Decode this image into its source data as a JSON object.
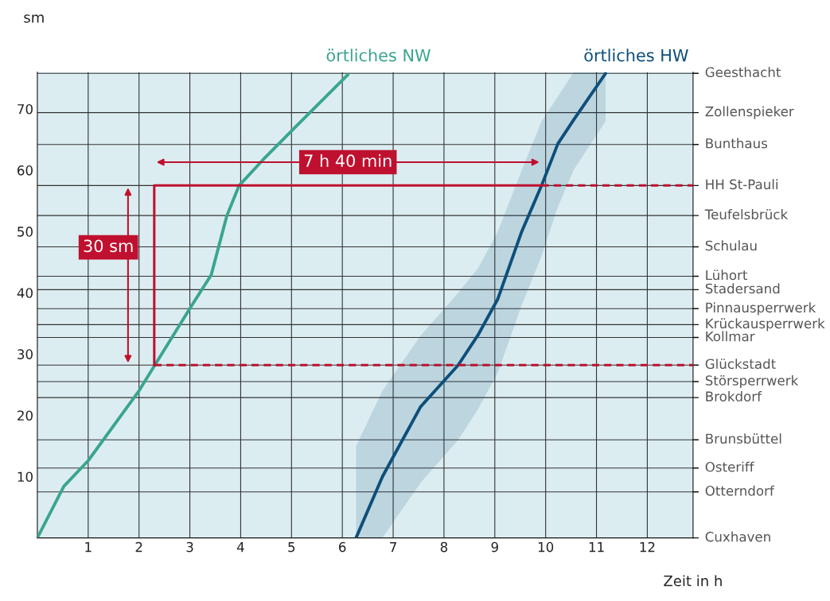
{
  "chart_data": {
    "type": "line",
    "xlabel": "Zeit in h",
    "ylabel": "sm",
    "xlim": [
      0,
      12.9
    ],
    "ylim": [
      0,
      76
    ],
    "xticks": [
      1,
      2,
      3,
      4,
      5,
      6,
      7,
      8,
      9,
      10,
      11,
      12
    ],
    "yticks": [
      10,
      20,
      30,
      40,
      50,
      60,
      70
    ],
    "ref_lines": [
      {
        "axis": "y",
        "value": 75.8,
        "label": "Geesthacht"
      },
      {
        "axis": "y",
        "value": 69.4,
        "label": "Zollenspieker"
      },
      {
        "axis": "y",
        "value": 64.2,
        "label": "Bunthaus"
      },
      {
        "axis": "y",
        "value": 57.5,
        "label": "HH St-Pauli"
      },
      {
        "axis": "y",
        "value": 52.6,
        "label": "Teufelsbrück"
      },
      {
        "axis": "y",
        "value": 47.5,
        "label": "Schulau"
      },
      {
        "axis": "y",
        "value": 42.7,
        "label": "Lühort"
      },
      {
        "axis": "y",
        "value": 40.5,
        "label": "Stadersand"
      },
      {
        "axis": "y",
        "value": 37.4,
        "label": "Pinnausperrwerk"
      },
      {
        "axis": "y",
        "value": 34.8,
        "label": "Krückausperrwerk"
      },
      {
        "axis": "y",
        "value": 32.7,
        "label": "Kollmar"
      },
      {
        "axis": "y",
        "value": 28.2,
        "label": "Glückstadt"
      },
      {
        "axis": "y",
        "value": 25.5,
        "label": "Störsperrwerk"
      },
      {
        "axis": "y",
        "value": 22.9,
        "label": "Brokdorf"
      },
      {
        "axis": "y",
        "value": 16.0,
        "label": "Brunsbüttel"
      },
      {
        "axis": "y",
        "value": 11.4,
        "label": "Osteriff"
      },
      {
        "axis": "y",
        "value": 7.5,
        "label": "Otterndorf"
      },
      {
        "axis": "y",
        "value": 0,
        "label": "Cuxhaven"
      }
    ],
    "grid": "x",
    "series": [
      {
        "name": "örtliches NW",
        "color": "#3aa58f",
        "x": [
          0,
          0.52,
          1.0,
          2.0,
          3.02,
          3.42,
          3.73,
          3.97,
          4.44,
          5.06,
          6.11
        ],
        "values": [
          0,
          8.4,
          12.6,
          24.0,
          37.7,
          42.9,
          52.6,
          57.5,
          61.7,
          66.9,
          75.6
        ]
      },
      {
        "name": "örtliches HW",
        "color": "#0d4f7a",
        "x": [
          6.27,
          6.79,
          7.54,
          8.28,
          8.67,
          9.06,
          9.53,
          9.92,
          10.24,
          10.55,
          11.18
        ],
        "values": [
          0,
          10,
          21.4,
          28.2,
          33.1,
          39,
          50,
          57.5,
          64.3,
          68.2,
          75.8
        ],
        "lower": [
          0,
          0,
          9,
          16,
          21,
          27,
          38,
          46,
          54,
          60,
          68
        ],
        "upper": [
          15,
          24,
          33,
          40,
          44,
          50,
          60,
          68,
          72,
          76,
          76
        ]
      },
      {
        "color": "#c0102f",
        "x": [
          2.3,
          2.3,
          9.92
        ],
        "values": [
          28.2,
          57.5,
          57.5
        ],
        "line_style": "solid"
      },
      {
        "color": "#c0102f",
        "x": [
          9.92,
          12.9
        ],
        "values": [
          57.5,
          57.5
        ],
        "line_style": "dashed"
      },
      {
        "color": "#c0102f",
        "x": [
          2.3,
          12.9
        ],
        "values": [
          28.2,
          28.2
        ],
        "line_style": "dashed"
      }
    ],
    "annotations": [
      "7 h 40 min",
      "30 sm"
    ]
  }
}
